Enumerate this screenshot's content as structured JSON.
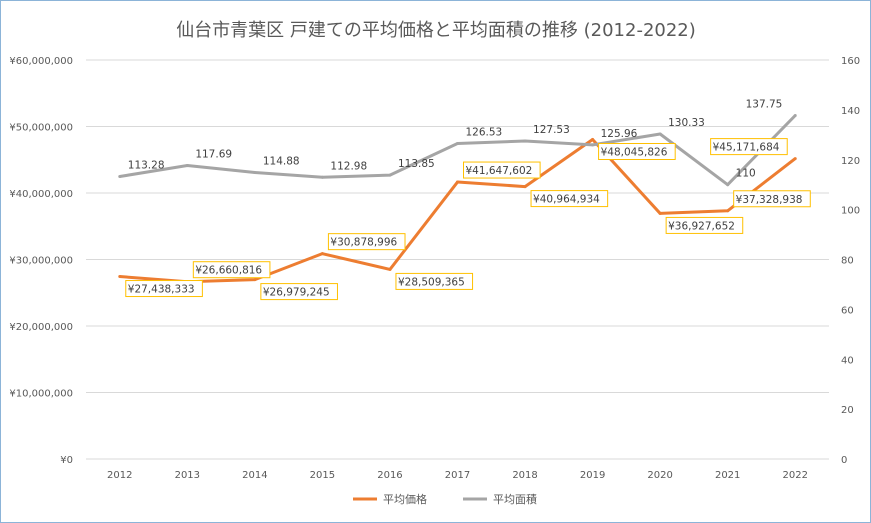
{
  "chart_data": {
    "type": "line",
    "title": "仙台市青葉区 戸建ての平均価格と平均面積の推移 (2012-2022)",
    "categories": [
      "2012",
      "2013",
      "2014",
      "2015",
      "2016",
      "2017",
      "2018",
      "2019",
      "2020",
      "2021",
      "2022"
    ],
    "series": [
      {
        "name": "平均価格",
        "axis": "left",
        "color": "#ED7D31",
        "values": [
          27438333,
          26660816,
          26979245,
          30878996,
          28509365,
          41647602,
          40964934,
          48045826,
          36927652,
          37328938,
          45171684
        ],
        "labels": [
          "¥27,438,333",
          "¥26,660,816",
          "¥26,979,245",
          "¥30,878,996",
          "¥28,509,365",
          "¥41,647,602",
          "¥40,964,934",
          "¥48,045,826",
          "¥36,927,652",
          "¥37,328,938",
          "¥45,171,684"
        ]
      },
      {
        "name": "平均面積",
        "axis": "right",
        "color": "#A5A5A5",
        "values": [
          113.28,
          117.69,
          114.88,
          112.98,
          113.85,
          126.53,
          127.53,
          125.96,
          130.33,
          110,
          137.75
        ],
        "labels": [
          "113.28",
          "117.69",
          "114.88",
          "112.98",
          "113.85",
          "126.53",
          "127.53",
          "125.96",
          "130.33",
          "110",
          "137.75"
        ]
      }
    ],
    "y_left": {
      "range": [
        0,
        60000000
      ],
      "ticks": [
        "¥0",
        "¥10,000,000",
        "¥20,000,000",
        "¥30,000,000",
        "¥40,000,000",
        "¥50,000,000",
        "¥60,000,000"
      ]
    },
    "y_right": {
      "range": [
        0,
        160
      ],
      "ticks": [
        "0",
        "20",
        "40",
        "60",
        "80",
        "100",
        "120",
        "140",
        "160"
      ]
    },
    "grid": true,
    "legend": "bottom",
    "label_box_color": "#FFC000"
  }
}
